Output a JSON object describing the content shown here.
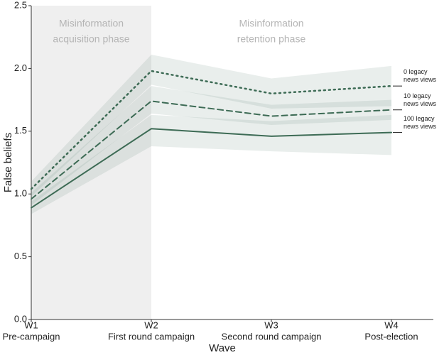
{
  "chart_data": {
    "type": "line",
    "xlabel": "Wave",
    "ylabel": "False beliefs",
    "categories": [
      "W1",
      "W2",
      "W3",
      "W4"
    ],
    "category_descriptions": [
      "Pre-campaign",
      "First round campaign",
      "Second round campaign",
      "Post-election"
    ],
    "ylim": [
      0,
      2.5
    ],
    "yticks": [
      {
        "value": 0,
        "label": "0.0"
      },
      {
        "value": 0.5,
        "label": "0.5"
      },
      {
        "value": 1,
        "label": "1.0"
      },
      {
        "value": 1.5,
        "label": "1.5"
      },
      {
        "value": 2,
        "label": "2.0"
      },
      {
        "value": 2.5,
        "label": "2.5"
      }
    ],
    "annotations": [
      {
        "lines": [
          "Misinformation",
          "acquisition phase"
        ],
        "from": 0,
        "to": 1
      },
      {
        "lines": [
          "Misinformation",
          "retention phase"
        ],
        "from": 1,
        "to": 3
      }
    ],
    "series": [
      {
        "name": "0 legacy news views",
        "color": "#3d6b55",
        "dash": "dotted",
        "values": [
          1.04,
          1.98,
          1.8,
          1.86
        ],
        "ci_lower": [
          0.98,
          1.87,
          1.68,
          1.7
        ],
        "ci_upper": [
          1.1,
          2.11,
          1.92,
          2.02
        ]
      },
      {
        "name": "10 legacy news views",
        "color": "#3d6b55",
        "dash": "dashed",
        "values": [
          0.96,
          1.74,
          1.62,
          1.67
        ],
        "ci_lower": [
          0.91,
          1.64,
          1.55,
          1.59
        ],
        "ci_upper": [
          1.01,
          1.86,
          1.71,
          1.75
        ]
      },
      {
        "name": "100 legacy news views",
        "color": "#3d6b55",
        "dash": "solid",
        "values": [
          0.89,
          1.52,
          1.46,
          1.49
        ],
        "ci_lower": [
          0.84,
          1.38,
          1.34,
          1.31
        ],
        "ci_upper": [
          0.94,
          1.63,
          1.58,
          1.63
        ]
      }
    ]
  }
}
